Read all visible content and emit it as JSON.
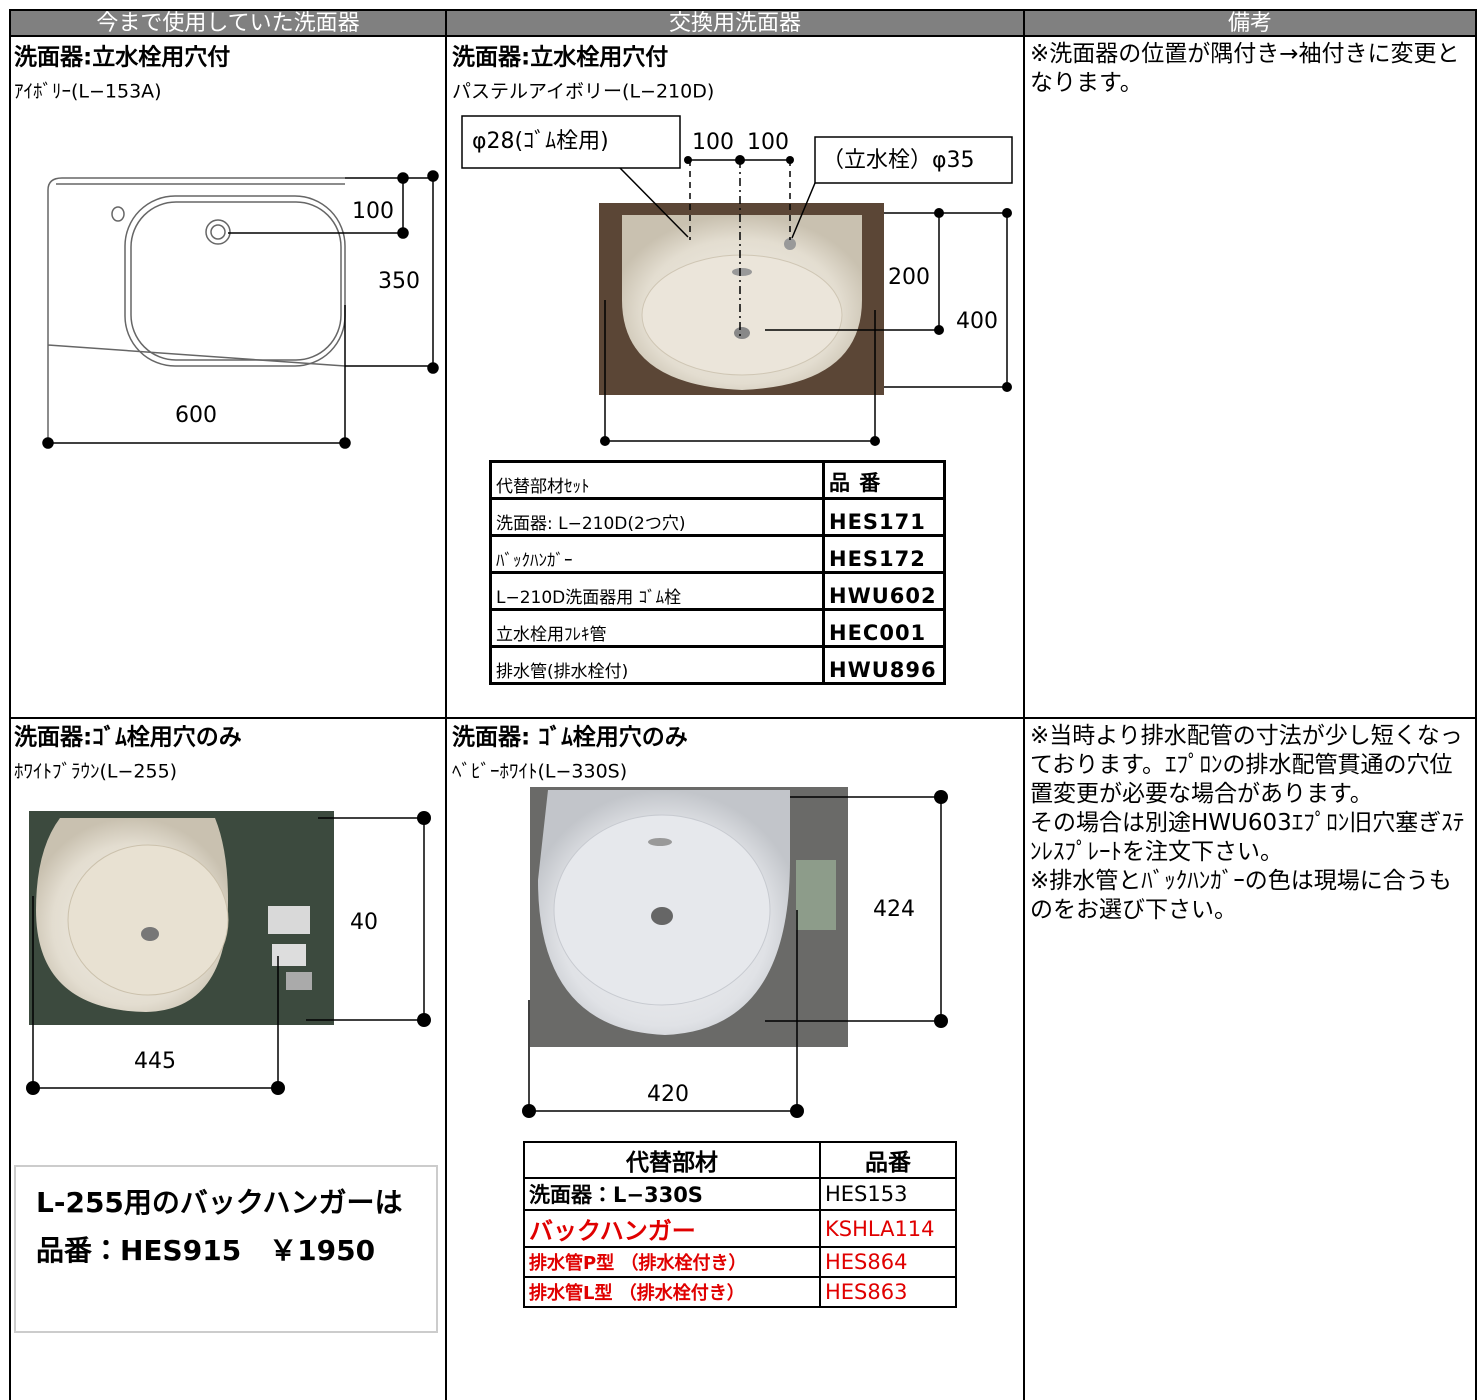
{
  "header": [
    "今まで使用していた洗面器",
    "交換用洗面器",
    "備考"
  ],
  "rows": [
    {
      "old": {
        "title": "洗面器:立水栓用穴付",
        "model": "ｱｲﾎﾞﾘｰ(L−153A)",
        "dimensions": [
          "100",
          "350",
          "600"
        ]
      },
      "new": {
        "title": "洗面器:立水栓用穴付",
        "model": "パステルアイボリー(L−210D)",
        "callouts": [
          "φ28(ｺﾞﾑ栓用)",
          "100",
          "100",
          "（立水栓）φ35"
        ],
        "dimensions": [
          "200",
          "400"
        ],
        "parts": {
          "header": [
            "代替部材ｾｯﾄ",
            "品 番"
          ],
          "rows": [
            [
              "洗面器: L−210D(2つ穴)",
              "HES171"
            ],
            [
              "ﾊﾞｯｸﾊﾝｶﾞｰ",
              "HES172"
            ],
            [
              "L−210D洗面器用 ｺﾞﾑ栓",
              "HWU602"
            ],
            [
              "立水栓用ﾌﾚｷ管",
              "HEC001"
            ],
            [
              "排水管(排水栓付)",
              "HWU896"
            ]
          ]
        }
      },
      "note": [
        "※洗面器の位置が隅付き→袖付きに変更となります。"
      ]
    },
    {
      "old": {
        "title": "洗面器:ｺﾞﾑ栓用穴のみ",
        "model": "ﾎﾜｲﾄﾌﾞﾗｳﾝ(L−255)",
        "dimensions": [
          "40",
          "445"
        ],
        "info": [
          "L-255用のバックハンガーは",
          "品番：HES915　￥1950"
        ]
      },
      "new": {
        "title": "洗面器: ｺﾞﾑ栓用穴のみ",
        "model": "ﾍﾞﾋﾞｰﾎﾜｲﾄ(L−330S)",
        "dimensions": [
          "424",
          "420"
        ],
        "parts": {
          "header": [
            "代替部材",
            "品番"
          ],
          "rows": [
            [
              "洗面器：L−330S",
              "HES153"
            ],
            [
              "バックハンガー",
              "KSHLA114"
            ],
            [
              "排水管P型 （排水栓付き）",
              "HES864"
            ],
            [
              "排水管L型 （排水栓付き）",
              "HES863"
            ]
          ]
        }
      },
      "note": [
        "※当時より排水配管の寸法が少し短くなっております。ｴﾌﾟﾛﾝの排水配管貫通の穴位置変更が必要な場合があります。",
        "その場合は別途HWU603ｴﾌﾟﾛﾝ旧穴塞ぎｽﾃﾝﾚｽﾌﾟﾚｰﾄを注文下さい。",
        "※排水管とﾊﾞｯｸﾊﾝｶﾞｰの色は現場に合うものをお選び下さい。"
      ]
    }
  ]
}
